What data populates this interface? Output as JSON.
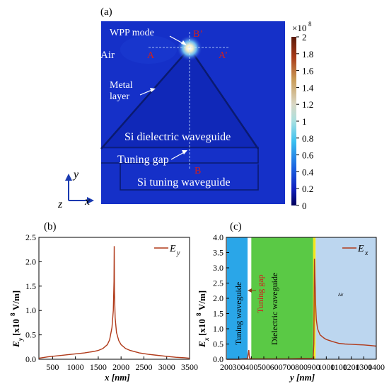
{
  "panel_a": {
    "label": "(a)",
    "colorbar_unit": "×10",
    "colorbar_exp": "8",
    "colorbar_ticks": [
      "2",
      "1.8",
      "1.6",
      "1.4",
      "1.2",
      "1",
      "0.8",
      "0.6",
      "0.4",
      "0.2",
      "0"
    ],
    "annotations": {
      "wpp_mode": "WPP mode",
      "air": "Air",
      "point_a": "A",
      "point_a_prime": "A’",
      "point_b": "B",
      "point_b_prime": "B’",
      "metal_line1": "Metal",
      "metal_line2": "layer",
      "si_dielectric": "Si dielectric waveguide",
      "tuning_gap": "Tuning gap",
      "si_tuning": "Si tuning waveguide"
    },
    "axes_labels": {
      "x": "x",
      "y": "y",
      "z": "z"
    },
    "colors": {
      "field_background": "#1530c8",
      "bar_top": "#5a1a0a",
      "bar_bottom": "#00005a"
    }
  },
  "chart_data": [
    {
      "type": "line",
      "panel_label": "(b)",
      "legend_base": "E",
      "legend_sub": "y",
      "xlabel": "x [nm]",
      "ylabel_main": "E",
      "ylabel_sub": "y",
      "ylabel_rest": "[x10",
      "ylabel_exp": "8",
      "ylabel_unit": "V/m]",
      "xlim": [
        200,
        3500
      ],
      "ylim": [
        0,
        2.5
      ],
      "xticks": [
        500,
        1000,
        1500,
        2000,
        2500,
        3000,
        3500
      ],
      "yticks": [
        0.0,
        0.5,
        1.0,
        1.5,
        2.0,
        2.5
      ],
      "xtick_labels": [
        "500",
        "1000",
        "1500",
        "2000",
        "2500",
        "3000",
        "3500"
      ],
      "ytick_labels": [
        "0.0",
        "0.5",
        "1.0",
        "1.5",
        "2.0",
        "2.5"
      ],
      "color": "#b03a1a",
      "series": [
        {
          "x": [
            200,
            400,
            600,
            800,
            1000,
            1200,
            1400,
            1500,
            1600,
            1700,
            1750,
            1800,
            1830,
            1845,
            1850,
            1855,
            1870,
            1900,
            1950,
            2000,
            2100,
            2200,
            2400,
            2600,
            2800,
            3000,
            3200,
            3400,
            3500
          ],
          "y": [
            0.02,
            0.05,
            0.07,
            0.09,
            0.11,
            0.13,
            0.16,
            0.18,
            0.22,
            0.3,
            0.4,
            0.65,
            1.0,
            1.6,
            2.32,
            1.4,
            0.85,
            0.55,
            0.38,
            0.3,
            0.22,
            0.18,
            0.13,
            0.1,
            0.08,
            0.06,
            0.04,
            0.03,
            0.02
          ]
        }
      ]
    },
    {
      "type": "line",
      "panel_label": "(c)",
      "legend_base": "E",
      "legend_sub": "x",
      "xlabel": "y [nm]",
      "ylabel_main": "E",
      "ylabel_sub": "x",
      "ylabel_rest": "[x10",
      "ylabel_exp": "8",
      "ylabel_unit": "V/m]",
      "xlim": [
        200,
        1400
      ],
      "ylim": [
        0,
        4.0
      ],
      "xticks": [
        200,
        300,
        400,
        500,
        600,
        700,
        800,
        900,
        1000,
        1100,
        1200,
        1300,
        1400
      ],
      "yticks": [
        0.0,
        0.5,
        1.0,
        1.5,
        2.0,
        2.5,
        3.0,
        3.5,
        4.0
      ],
      "xtick_labels": [
        "200",
        "300",
        "400",
        "500",
        "600",
        "700",
        "800",
        "900",
        "1000",
        "1100",
        "1200",
        "1300",
        "1400"
      ],
      "ytick_labels": [
        "0.0",
        "0.5",
        "1.0",
        "1.5",
        "2.0",
        "2.5",
        "3.0",
        "3.5",
        "4.0"
      ],
      "color": "#b03a1a",
      "regions": [
        {
          "label": "Tuning waveguide",
          "x0": 205,
          "x1": 370,
          "color": "#2aa6e8"
        },
        {
          "label": "Tuning gap",
          "x0": 370,
          "x1": 400,
          "color": "#ffffff"
        },
        {
          "label": "Dielectric waveguide",
          "x0": 400,
          "x1": 895,
          "color": "#5ac945"
        },
        {
          "label": "",
          "x0": 895,
          "x1": 915,
          "color": "#f4e61c"
        },
        {
          "label": "Air",
          "x0": 915,
          "x1": 1400,
          "color": "#bcd6ef"
        }
      ],
      "series": [
        {
          "x": [
            205,
            300,
            370,
            380,
            385,
            390,
            400,
            500,
            600,
            700,
            800,
            880,
            895,
            900,
            905,
            910,
            915,
            920,
            930,
            950,
            980,
            1000,
            1050,
            1100,
            1150,
            1200,
            1250,
            1300,
            1350,
            1400
          ],
          "y": [
            0.0,
            0.0,
            0.02,
            0.3,
            0.05,
            0.02,
            0.01,
            0.01,
            0.01,
            0.01,
            0.02,
            0.02,
            0.05,
            0.5,
            3.3,
            2.6,
            1.8,
            1.3,
            1.0,
            0.8,
            0.7,
            0.65,
            0.58,
            0.52,
            0.5,
            0.49,
            0.48,
            0.47,
            0.45,
            0.43
          ]
        }
      ]
    }
  ]
}
